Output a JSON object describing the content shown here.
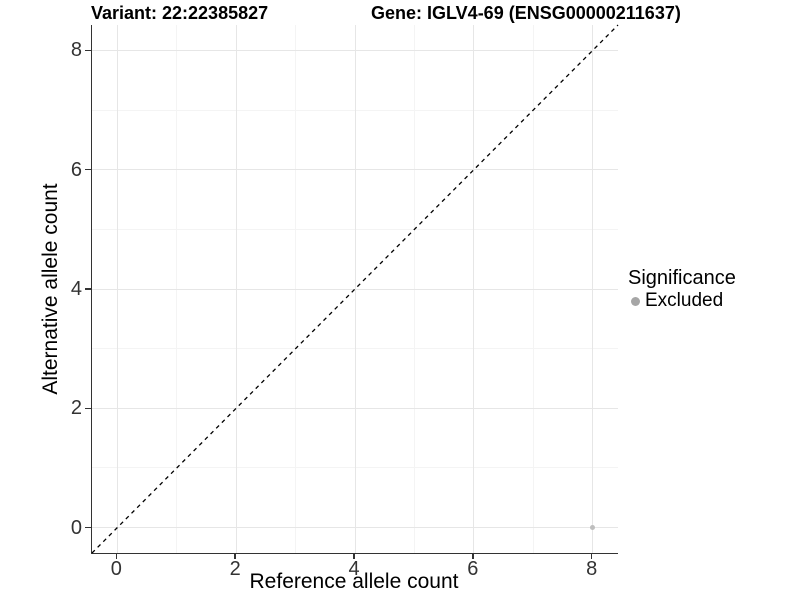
{
  "figure": {
    "title_left": "Variant: 22:22385827",
    "title_right": "Gene: IGLV4-69 (ENSG00000211637)"
  },
  "chart_data": {
    "type": "scatter",
    "title": "Variant: 22:22385827   Gene: IGLV4-69 (ENSG00000211637)",
    "xlabel": "Reference allele count",
    "ylabel": "Alternative allele count",
    "xlim": [
      -0.425,
      8.425
    ],
    "ylim": [
      -0.425,
      8.425
    ],
    "x_ticks": [
      0,
      2,
      4,
      6,
      8
    ],
    "y_ticks": [
      0,
      2,
      4,
      6,
      8
    ],
    "x_minor_ticks": [
      1,
      3,
      5,
      7
    ],
    "y_minor_ticks": [
      1,
      3,
      5,
      7
    ],
    "grid": true,
    "series": [
      {
        "name": "Excluded",
        "color": "#bebebe",
        "points": [
          {
            "x": 8,
            "y": 0
          }
        ]
      }
    ],
    "reference_line": {
      "type": "identity",
      "style": "dashed",
      "color": "#000000",
      "from": [
        -0.425,
        -0.425
      ],
      "to": [
        8.425,
        8.425
      ]
    },
    "legend": {
      "title": "Significance",
      "position": "right",
      "items": [
        {
          "label": "Excluded",
          "color": "#a6a6a6"
        }
      ]
    }
  },
  "colors": {
    "background": "#ffffff",
    "grid_major": "#e6e6e6",
    "grid_minor": "#f4f4f4",
    "axis_line": "#333333",
    "tick_text": "#333333",
    "point": "#bebebe",
    "legend_key": "#a6a6a6",
    "reference_line": "#000000"
  }
}
